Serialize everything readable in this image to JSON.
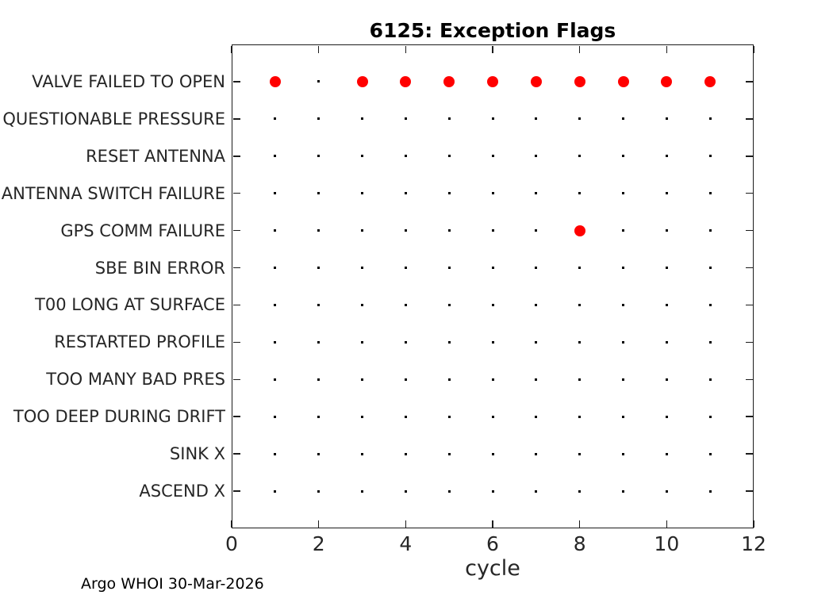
{
  "figure": {
    "title": "6125: Exception Flags",
    "xlabel": "cycle",
    "footer": "Argo WHOI 30-Mar-2026"
  },
  "colors": {
    "flag_set": "#ff0000",
    "flag_not_set": "#000000",
    "axis": "#1c1c1c",
    "tick_text": "#262626",
    "background": "#ffffff"
  },
  "chart_data": {
    "type": "scatter",
    "title": "6125: Exception Flags",
    "xlabel": "cycle",
    "ylabel": "",
    "xlim": [
      0,
      12
    ],
    "xticks": [
      0,
      2,
      4,
      6,
      8,
      10,
      12
    ],
    "grid": false,
    "legend": "none",
    "categories": [
      "VALVE FAILED TO OPEN",
      "QUESTIONABLE PRESSURE",
      "RESET ANTENNA",
      "ANTENNA SWITCH FAILURE",
      "GPS COMM FAILURE",
      "SBE BIN ERROR",
      "T00 LONG AT SURFACE",
      "RESTARTED PROFILE",
      "TOO MANY BAD PRES",
      "TOO DEEP DURING DRIFT",
      "SINK X",
      "ASCEND X"
    ],
    "observed_cycles": [
      1,
      2,
      3,
      4,
      5,
      6,
      7,
      8,
      9,
      10,
      11
    ],
    "rows": [
      {
        "label": "VALVE FAILED TO OPEN",
        "red_cycles": [
          1,
          3,
          4,
          5,
          6,
          7,
          8,
          9,
          10,
          11
        ]
      },
      {
        "label": "QUESTIONABLE PRESSURE",
        "red_cycles": []
      },
      {
        "label": "RESET ANTENNA",
        "red_cycles": []
      },
      {
        "label": "ANTENNA SWITCH FAILURE",
        "red_cycles": []
      },
      {
        "label": "GPS COMM FAILURE",
        "red_cycles": [
          8
        ]
      },
      {
        "label": "SBE BIN ERROR",
        "red_cycles": []
      },
      {
        "label": "T00 LONG AT SURFACE",
        "red_cycles": []
      },
      {
        "label": "RESTARTED PROFILE",
        "red_cycles": []
      },
      {
        "label": "TOO MANY BAD PRES",
        "red_cycles": []
      },
      {
        "label": "TOO DEEP DURING DRIFT",
        "red_cycles": []
      },
      {
        "label": "SINK X",
        "red_cycles": []
      },
      {
        "label": "ASCEND X",
        "red_cycles": []
      }
    ],
    "marker_red_series": "flag raised (filled red circle)",
    "marker_black_series": "no flag (small black point)"
  }
}
